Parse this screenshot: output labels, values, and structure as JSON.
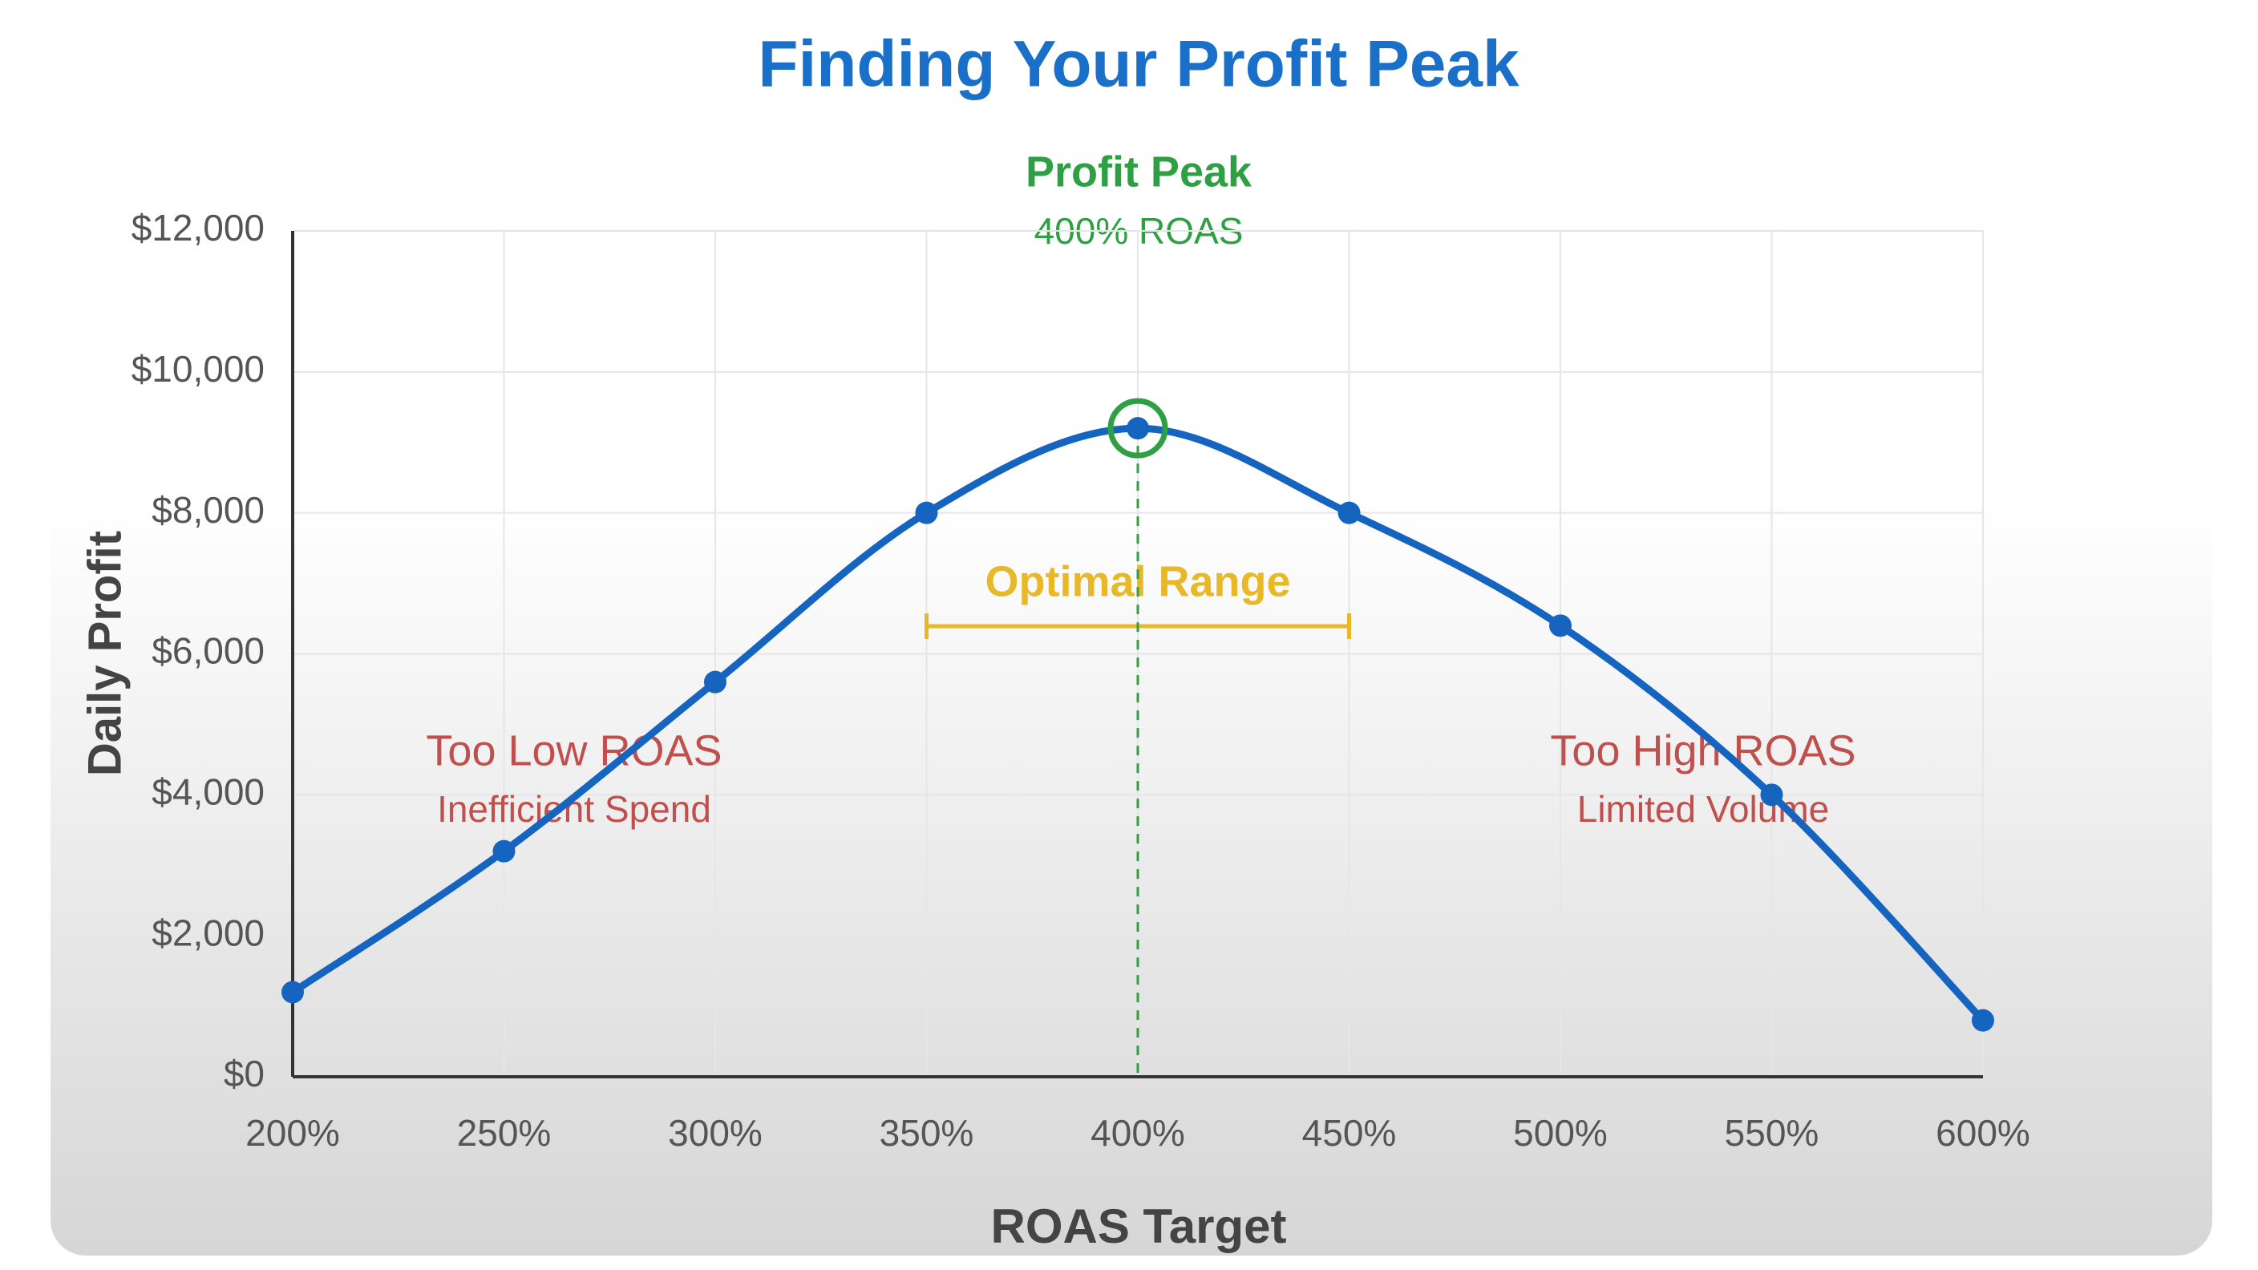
{
  "chart_data": {
    "type": "line",
    "title": "Finding Your Profit Peak",
    "x_label": "ROAS Target",
    "y_label": "Daily Profit",
    "x": [
      200,
      250,
      300,
      350,
      400,
      450,
      500,
      550,
      600
    ],
    "series": [
      {
        "color": "#1565c0",
        "values": [
          1200,
          3200,
          5600,
          8000,
          9200,
          8000,
          6400,
          4000,
          800
        ]
      }
    ],
    "xlim": [
      200,
      600
    ],
    "xticks": [
      {
        "value": 200,
        "label": "200%"
      },
      {
        "value": 250,
        "label": "250%"
      },
      {
        "value": 300,
        "label": "300%"
      },
      {
        "value": 350,
        "label": "350%"
      },
      {
        "value": 400,
        "label": "400%"
      },
      {
        "value": 450,
        "label": "450%"
      },
      {
        "value": 500,
        "label": "500%"
      },
      {
        "value": 550,
        "label": "550%"
      },
      {
        "value": 600,
        "label": "600%"
      }
    ],
    "ylim": [
      0,
      12000
    ],
    "yticks": [
      {
        "value": 0,
        "label": "$0"
      },
      {
        "value": 2000,
        "label": "$2,000"
      },
      {
        "value": 4000,
        "label": "$4,000"
      },
      {
        "value": 6000,
        "label": "$6,000"
      },
      {
        "value": 8000,
        "label": "$8,000"
      },
      {
        "value": 10000,
        "label": "$10,000"
      },
      {
        "value": 12000,
        "label": "$12,000"
      }
    ],
    "grid": true,
    "peak": {
      "title": "Profit Peak",
      "subtitle": "400% ROAS",
      "x": 400,
      "color": "#2ea043"
    },
    "optimal_range": {
      "label": "Optimal Range",
      "from": 350,
      "to": 450,
      "color": "#e8b828"
    },
    "annotations": [
      {
        "title": "Too Low ROAS",
        "subtitle": "Inefficient Spend"
      },
      {
        "title": "Too High ROAS",
        "subtitle": "Limited Volume"
      }
    ]
  }
}
